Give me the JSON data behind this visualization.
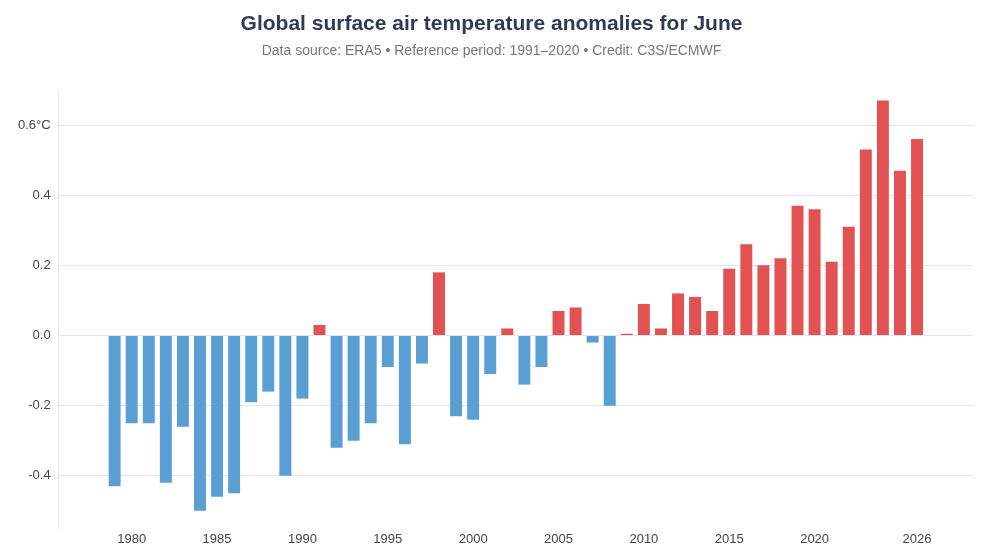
{
  "chart_data": {
    "type": "bar",
    "title": "Global surface air temperature anomalies for June",
    "subtitle": "Data source: ERA5 • Reference period: 1991–2020 • Credit: C3S/ECMWF",
    "x": [
      1979,
      1980,
      1981,
      1982,
      1983,
      1984,
      1985,
      1986,
      1987,
      1988,
      1989,
      1990,
      1991,
      1992,
      1993,
      1994,
      1995,
      1996,
      1997,
      1998,
      1999,
      2000,
      2001,
      2002,
      2003,
      2004,
      2005,
      2006,
      2007,
      2008,
      2009,
      2010,
      2011,
      2012,
      2013,
      2014,
      2015,
      2016,
      2017,
      2018,
      2019,
      2020,
      2021,
      2022,
      2023,
      2024,
      2025,
      2026
    ],
    "values": [
      -0.43,
      -0.25,
      -0.25,
      -0.42,
      -0.26,
      -0.5,
      -0.46,
      -0.45,
      -0.19,
      -0.16,
      -0.4,
      -0.18,
      0.03,
      -0.32,
      -0.3,
      -0.25,
      -0.09,
      -0.31,
      -0.08,
      0.18,
      -0.23,
      -0.24,
      -0.11,
      0.02,
      -0.14,
      -0.09,
      0.07,
      0.08,
      -0.02,
      -0.2,
      0.005,
      0.09,
      0.02,
      0.12,
      0.11,
      0.07,
      0.19,
      0.26,
      0.2,
      0.22,
      0.37,
      0.36,
      0.21,
      0.31,
      0.53,
      0.67,
      0.47,
      0.56
    ],
    "colors": [
      "#5a9fd4",
      "#5a9fd4",
      "#5a9fd4",
      "#5a9fd4",
      "#5a9fd4",
      "#5a9fd4",
      "#5a9fd4",
      "#5a9fd4",
      "#5a9fd4",
      "#5a9fd4",
      "#5a9fd4",
      "#5a9fd4",
      "#e25252",
      "#5a9fd4",
      "#5a9fd4",
      "#5a9fd4",
      "#5a9fd4",
      "#5a9fd4",
      "#5a9fd4",
      "#e25252",
      "#5a9fd4",
      "#5a9fd4",
      "#5a9fd4",
      "#e25252",
      "#5a9fd4",
      "#5a9fd4",
      "#e25252",
      "#e25252",
      "#5a9fd4",
      "#5a9fd4",
      "#e25252",
      "#e25252",
      "#e25252",
      "#e25252",
      "#e25252",
      "#e25252",
      "#e25252",
      "#e25252",
      "#e25252",
      "#e25252",
      "#e25252",
      "#e25252",
      "#e25252",
      "#e25252",
      "#e25252",
      "#e25252",
      "#e25252",
      "#e25252"
    ],
    "xlim": [
      1978.4,
      2026.6
    ],
    "xticks": [
      1980,
      1985,
      1990,
      1995,
      2000,
      2005,
      2010,
      2015,
      2020,
      2026
    ],
    "ylim": [
      -0.55,
      0.7
    ],
    "yticks": [
      -0.4,
      -0.2,
      {
        "value": 0,
        "label": "0.0"
      },
      0.2,
      0.4,
      {
        "value": 0.6,
        "label": "0.6°C"
      }
    ],
    "grid": "y"
  }
}
